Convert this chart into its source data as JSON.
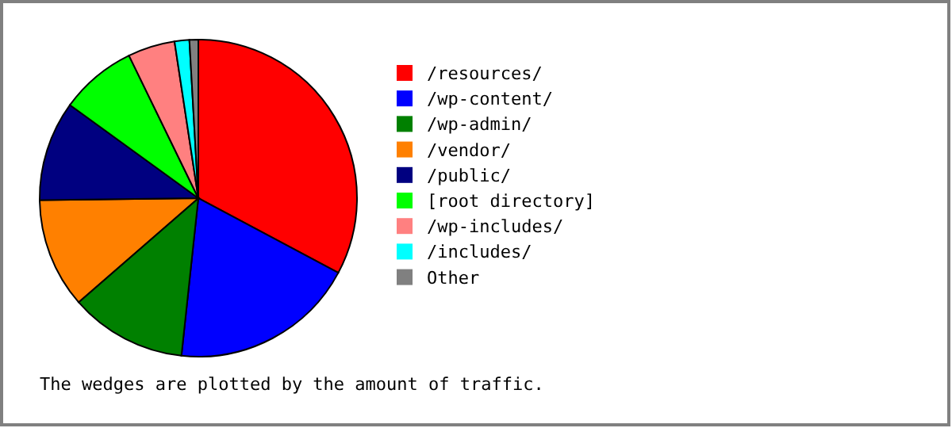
{
  "chart_data": {
    "type": "pie",
    "categories": [
      "/resources/",
      "/wp-content/",
      "/wp-admin/",
      "/vendor/",
      "/public/",
      "[root directory]",
      "/wp-includes/",
      "/includes/",
      "Other"
    ],
    "values": [
      32.8,
      18.9,
      11.9,
      11.2,
      10.2,
      7.8,
      4.8,
      1.5,
      0.9
    ],
    "colors": [
      "#ff0000",
      "#0000ff",
      "#008000",
      "#ff8000",
      "#000080",
      "#00ff00",
      "#ff8080",
      "#00ffff",
      "#808080"
    ],
    "legend": "right",
    "annotations": [
      "The wedges are plotted by the amount of traffic."
    ]
  }
}
